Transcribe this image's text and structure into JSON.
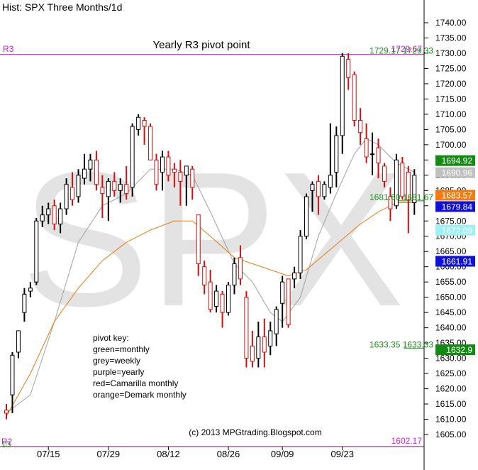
{
  "header": {
    "title": "Hist: SPX Three Months/1d"
  },
  "watermark": "SPX",
  "annotations": {
    "r3_title": "Yearly R3 pivot point",
    "r3_label": "R3",
    "r3_value": "1729.67",
    "r2_label": "R2",
    "r2_partial": "13",
    "low_value": "1602.17",
    "pivot_key": [
      "pivot key:",
      "green=monthly",
      "grey=weekly",
      "purple=yearly",
      "red=Camarilla monthly",
      "orange=Demark monthly"
    ],
    "copyright": "(c) 2013 MPGtrading.Blogspot.com",
    "level_labels": [
      {
        "text": "1729.17 1729.33",
        "price": 1729.6,
        "color": "#1a8a1a"
      },
      {
        "text": "1681.60 1681.67",
        "price": 1681.6,
        "color": "#1a8a1a"
      },
      {
        "text": "1633.35 1633.33",
        "price": 1633.3,
        "color": "#1a8a1a"
      }
    ]
  },
  "price_tags": [
    {
      "value": "1694.92",
      "price": 1694.92,
      "bg": "#138a13",
      "fg": "#ffffff"
    },
    {
      "value": "1690.96",
      "price": 1690.96,
      "bg": "#c0c0c0",
      "fg": "#ffffff"
    },
    {
      "value": "1683.57",
      "price": 1683.57,
      "bg": "#f07c12",
      "fg": "#ffffff"
    },
    {
      "value": "1679.84",
      "price": 1679.84,
      "bg": "#1010d8",
      "fg": "#ffffff"
    },
    {
      "value": "1672.09",
      "price": 1672.09,
      "bg": "#9ff0f5",
      "fg": "#ffffff"
    },
    {
      "value": "1661.91",
      "price": 1661.91,
      "bg": "#1010d8",
      "fg": "#ffffff"
    },
    {
      "value": "1632.9",
      "price": 1632.9,
      "bg": "#138a13",
      "fg": "#ffffff"
    }
  ],
  "colors": {
    "up_candle": "#000000",
    "down_candle": "#d01010",
    "r3_line": "#d81ad8",
    "ma_fast": "#a0a0a0",
    "ma_slow": "#e87a10",
    "watermark": "#e3e3e3",
    "r3_text": "#d81ad8"
  },
  "chart_data": {
    "type": "candlestick",
    "ylim": [
      1605,
      1740
    ],
    "y_ticks": [
      "1740.00",
      "1735.00",
      "1730.00",
      "1725.00",
      "1720.00",
      "1715.00",
      "1710.00",
      "1705.00",
      "1700.00",
      "1695.00",
      "1690.00",
      "1685.00",
      "1680.00",
      "1675.00",
      "1670.00",
      "1665.00",
      "1660.00",
      "1655.00",
      "1650.00",
      "1645.00",
      "1640.00",
      "1635.00",
      "1630.00",
      "1625.00",
      "1620.00",
      "1615.00",
      "1610.00",
      "1605.00"
    ],
    "x_tick_labels": [
      {
        "label": "07/15",
        "index": 7
      },
      {
        "label": "07/29",
        "index": 17
      },
      {
        "label": "08/12",
        "index": 27
      },
      {
        "label": "08/26",
        "index": 37
      },
      {
        "label": "09/09",
        "index": 46
      },
      {
        "label": "09/23",
        "index": 56
      }
    ],
    "candles": [
      {
        "o": 1613,
        "h": 1615,
        "l": 1610,
        "c": 1612
      },
      {
        "o": 1618,
        "h": 1632,
        "l": 1612,
        "c": 1631
      },
      {
        "o": 1632,
        "h": 1639,
        "l": 1630,
        "c": 1639
      },
      {
        "o": 1645,
        "h": 1653,
        "l": 1642,
        "c": 1651
      },
      {
        "o": 1652,
        "h": 1655,
        "l": 1650,
        "c": 1653
      },
      {
        "o": 1655,
        "h": 1676,
        "l": 1654,
        "c": 1675
      },
      {
        "o": 1675,
        "h": 1680,
        "l": 1673,
        "c": 1677
      },
      {
        "o": 1677,
        "h": 1681,
        "l": 1674,
        "c": 1679
      },
      {
        "o": 1680,
        "h": 1682,
        "l": 1672,
        "c": 1674
      },
      {
        "o": 1674,
        "h": 1681,
        "l": 1671,
        "c": 1679
      },
      {
        "o": 1679,
        "h": 1689,
        "l": 1677,
        "c": 1687
      },
      {
        "o": 1686,
        "h": 1691,
        "l": 1680,
        "c": 1682
      },
      {
        "o": 1683,
        "h": 1692,
        "l": 1681,
        "c": 1690
      },
      {
        "o": 1689,
        "h": 1697,
        "l": 1687,
        "c": 1692
      },
      {
        "o": 1692,
        "h": 1697,
        "l": 1688,
        "c": 1695
      },
      {
        "o": 1695,
        "h": 1698,
        "l": 1685,
        "c": 1687
      },
      {
        "o": 1686,
        "h": 1690,
        "l": 1676,
        "c": 1684
      },
      {
        "o": 1683,
        "h": 1689,
        "l": 1675,
        "c": 1688
      },
      {
        "o": 1688,
        "h": 1691,
        "l": 1683,
        "c": 1685
      },
      {
        "o": 1685,
        "h": 1689,
        "l": 1681,
        "c": 1687
      },
      {
        "o": 1687,
        "h": 1693,
        "l": 1682,
        "c": 1684
      },
      {
        "o": 1686,
        "h": 1707,
        "l": 1683,
        "c": 1706
      },
      {
        "o": 1705,
        "h": 1710,
        "l": 1703,
        "c": 1709
      },
      {
        "o": 1708,
        "h": 1709,
        "l": 1700,
        "c": 1706
      },
      {
        "o": 1706,
        "h": 1707,
        "l": 1695,
        "c": 1695
      },
      {
        "o": 1695,
        "h": 1697,
        "l": 1685,
        "c": 1687
      },
      {
        "o": 1691,
        "h": 1698,
        "l": 1685,
        "c": 1696
      },
      {
        "o": 1696,
        "h": 1698,
        "l": 1688,
        "c": 1690
      },
      {
        "o": 1692,
        "h": 1694,
        "l": 1686,
        "c": 1691
      },
      {
        "o": 1691,
        "h": 1695,
        "l": 1680,
        "c": 1688
      },
      {
        "o": 1690,
        "h": 1693,
        "l": 1680,
        "c": 1693
      },
      {
        "o": 1692,
        "h": 1693,
        "l": 1682,
        "c": 1686
      },
      {
        "o": 1677,
        "h": 1677,
        "l": 1657,
        "c": 1661
      },
      {
        "o": 1660,
        "h": 1662,
        "l": 1651,
        "c": 1654
      },
      {
        "o": 1655,
        "h": 1659,
        "l": 1645,
        "c": 1646
      },
      {
        "o": 1647,
        "h": 1654,
        "l": 1645,
        "c": 1652
      },
      {
        "o": 1651,
        "h": 1652,
        "l": 1640,
        "c": 1645
      },
      {
        "o": 1645,
        "h": 1655,
        "l": 1644,
        "c": 1654
      },
      {
        "o": 1654,
        "h": 1663,
        "l": 1651,
        "c": 1661
      },
      {
        "o": 1663,
        "h": 1667,
        "l": 1654,
        "c": 1656
      },
      {
        "o": 1650,
        "h": 1652,
        "l": 1627,
        "c": 1630
      },
      {
        "o": 1634,
        "h": 1639,
        "l": 1627,
        "c": 1629
      },
      {
        "o": 1630,
        "h": 1642,
        "l": 1627,
        "c": 1637
      },
      {
        "o": 1637,
        "h": 1643,
        "l": 1627,
        "c": 1632
      },
      {
        "o": 1634,
        "h": 1642,
        "l": 1631,
        "c": 1639
      },
      {
        "o": 1638,
        "h": 1647,
        "l": 1634,
        "c": 1646
      },
      {
        "o": 1648,
        "h": 1657,
        "l": 1640,
        "c": 1655
      },
      {
        "o": 1656,
        "h": 1656,
        "l": 1640,
        "c": 1641
      },
      {
        "o": 1656,
        "h": 1660,
        "l": 1653,
        "c": 1658
      },
      {
        "o": 1658,
        "h": 1672,
        "l": 1656,
        "c": 1670
      },
      {
        "o": 1670,
        "h": 1684,
        "l": 1669,
        "c": 1683
      },
      {
        "o": 1685,
        "h": 1688,
        "l": 1678,
        "c": 1687
      },
      {
        "o": 1688,
        "h": 1690,
        "l": 1677,
        "c": 1683
      },
      {
        "o": 1683,
        "h": 1688,
        "l": 1682,
        "c": 1687
      },
      {
        "o": 1686,
        "h": 1707,
        "l": 1684,
        "c": 1690
      },
      {
        "o": 1691,
        "h": 1706,
        "l": 1686,
        "c": 1703
      },
      {
        "o": 1703,
        "h": 1730,
        "l": 1697,
        "c": 1729
      },
      {
        "o": 1728,
        "h": 1730,
        "l": 1718,
        "c": 1722
      },
      {
        "o": 1723,
        "h": 1724,
        "l": 1706,
        "c": 1708
      },
      {
        "o": 1708,
        "h": 1712,
        "l": 1700,
        "c": 1704
      },
      {
        "o": 1702,
        "h": 1707,
        "l": 1694,
        "c": 1696
      },
      {
        "o": 1697,
        "h": 1704,
        "l": 1690,
        "c": 1697
      },
      {
        "o": 1699,
        "h": 1702,
        "l": 1689,
        "c": 1694
      },
      {
        "o": 1693,
        "h": 1694,
        "l": 1686,
        "c": 1688
      },
      {
        "o": 1683,
        "h": 1686,
        "l": 1675,
        "c": 1679
      },
      {
        "o": 1680,
        "h": 1697,
        "l": 1679,
        "c": 1695
      },
      {
        "o": 1694,
        "h": 1696,
        "l": 1682,
        "c": 1683
      },
      {
        "o": 1691,
        "h": 1693,
        "l": 1671,
        "c": 1682
      },
      {
        "o": 1681,
        "h": 1692,
        "l": 1677,
        "c": 1690
      }
    ],
    "ma_fast": [
      {
        "i": 0,
        "v": 1612
      },
      {
        "i": 4,
        "v": 1618
      },
      {
        "i": 8,
        "v": 1642
      },
      {
        "i": 12,
        "v": 1668
      },
      {
        "i": 16,
        "v": 1680
      },
      {
        "i": 20,
        "v": 1684
      },
      {
        "i": 24,
        "v": 1692
      },
      {
        "i": 28,
        "v": 1692
      },
      {
        "i": 31,
        "v": 1690
      },
      {
        "i": 34,
        "v": 1678
      },
      {
        "i": 38,
        "v": 1661
      },
      {
        "i": 41,
        "v": 1655
      },
      {
        "i": 44,
        "v": 1645
      },
      {
        "i": 46,
        "v": 1642
      },
      {
        "i": 49,
        "v": 1650
      },
      {
        "i": 52,
        "v": 1670
      },
      {
        "i": 55,
        "v": 1684
      },
      {
        "i": 58,
        "v": 1697
      },
      {
        "i": 60,
        "v": 1702
      },
      {
        "i": 62,
        "v": 1700
      },
      {
        "i": 65,
        "v": 1694
      },
      {
        "i": 68,
        "v": 1691
      }
    ],
    "ma_slow": [
      {
        "i": 0,
        "v": 1611
      },
      {
        "i": 4,
        "v": 1625
      },
      {
        "i": 8,
        "v": 1642
      },
      {
        "i": 12,
        "v": 1653
      },
      {
        "i": 16,
        "v": 1662
      },
      {
        "i": 20,
        "v": 1668
      },
      {
        "i": 24,
        "v": 1672
      },
      {
        "i": 28,
        "v": 1675
      },
      {
        "i": 31,
        "v": 1675
      },
      {
        "i": 34,
        "v": 1670
      },
      {
        "i": 38,
        "v": 1663
      },
      {
        "i": 41,
        "v": 1661
      },
      {
        "i": 44,
        "v": 1659
      },
      {
        "i": 47,
        "v": 1657
      },
      {
        "i": 50,
        "v": 1659
      },
      {
        "i": 53,
        "v": 1664
      },
      {
        "i": 56,
        "v": 1669
      },
      {
        "i": 59,
        "v": 1674
      },
      {
        "i": 62,
        "v": 1678
      },
      {
        "i": 65,
        "v": 1681
      },
      {
        "i": 68,
        "v": 1681
      }
    ]
  }
}
